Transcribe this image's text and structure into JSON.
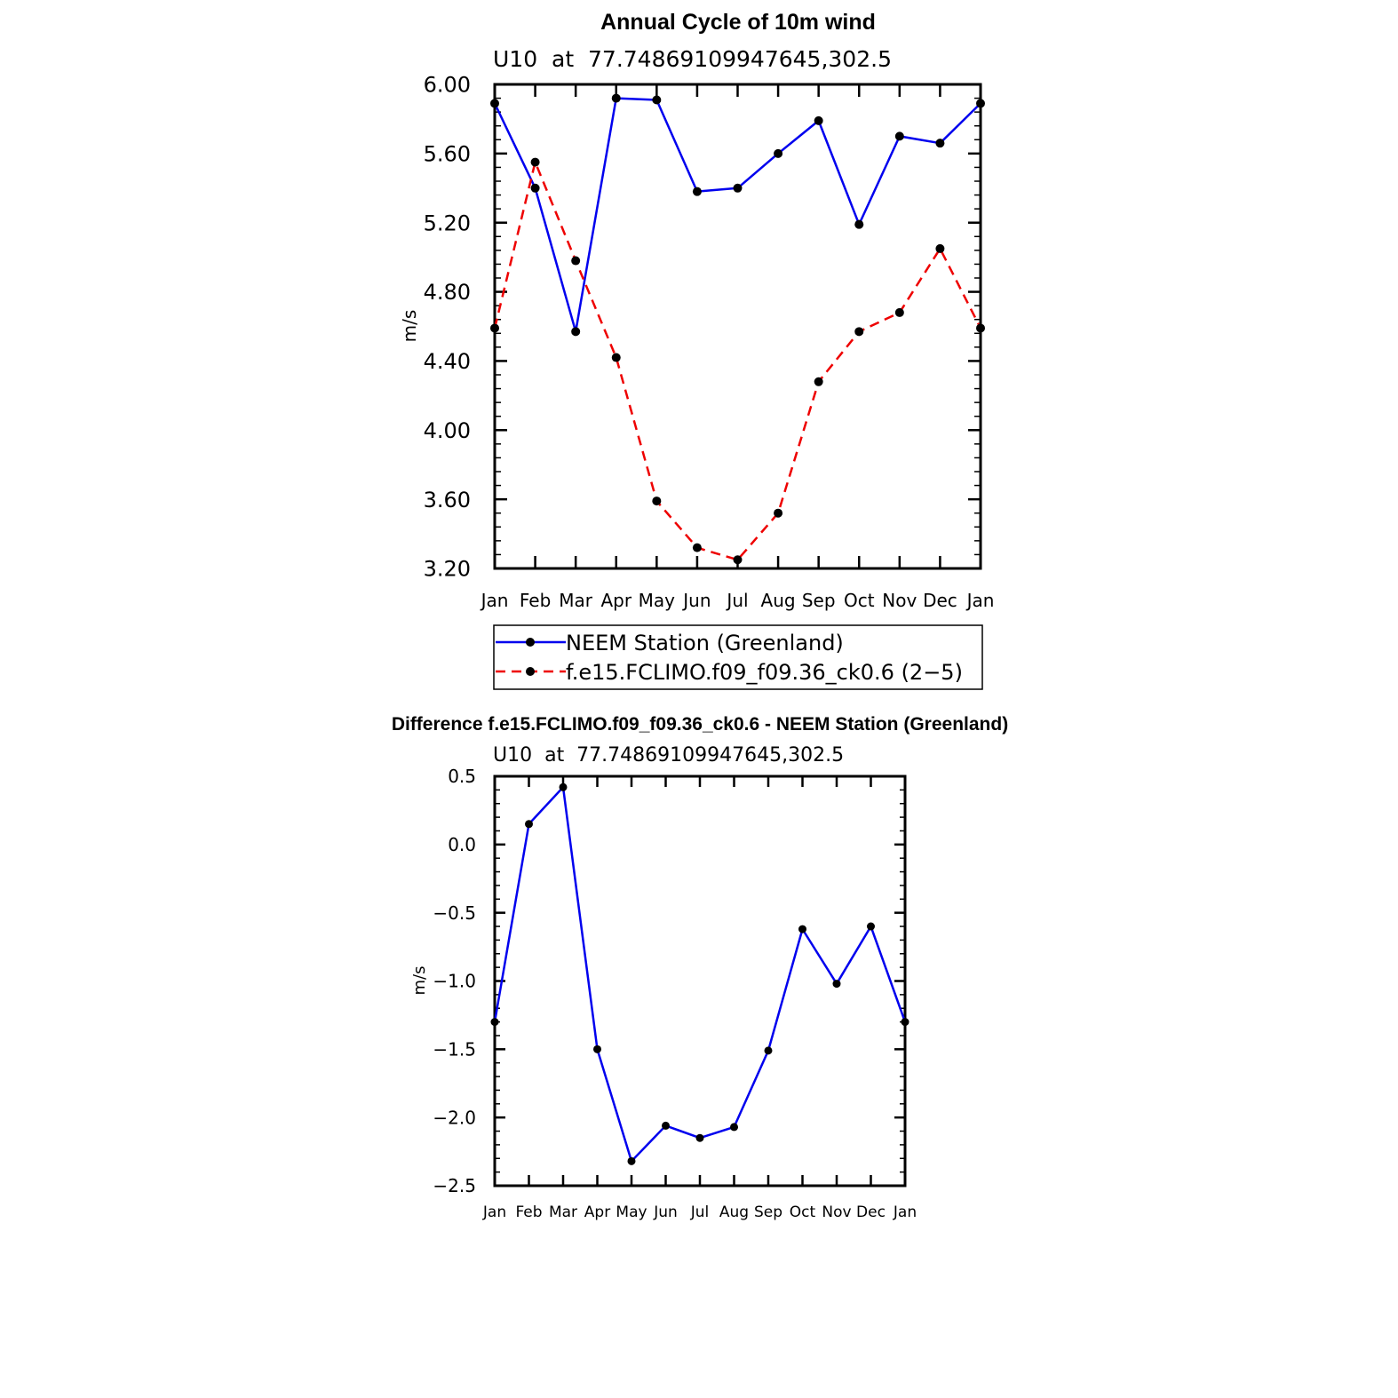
{
  "chart_data": [
    {
      "type": "line",
      "title": "Annual Cycle of 10m wind",
      "subtitle": "U10  at  77.74869109947645,302.5",
      "ylabel": "m/s",
      "xlabel": "",
      "categories": [
        "Jan",
        "Feb",
        "Mar",
        "Apr",
        "May",
        "Jun",
        "Jul",
        "Aug",
        "Sep",
        "Oct",
        "Nov",
        "Dec",
        "Jan"
      ],
      "ylim": [
        3.2,
        6.0
      ],
      "yticks": [
        "3.20",
        "3.60",
        "4.00",
        "4.40",
        "4.80",
        "5.20",
        "5.60",
        "6.00"
      ],
      "grid": false,
      "legend_position": "bottom",
      "series": [
        {
          "name": "NEEM Station (Greenland)",
          "color": "#0000ee",
          "dash": "solid",
          "values": [
            5.89,
            5.4,
            4.57,
            5.92,
            5.91,
            5.38,
            5.4,
            5.6,
            5.79,
            5.19,
            5.7,
            5.66,
            5.89
          ]
        },
        {
          "name": "f.e15.FCLIMO.f09_f09.36_ck0.6 (2−5)",
          "color": "#ee0000",
          "dash": "dashed",
          "values": [
            4.59,
            5.55,
            4.98,
            4.42,
            3.59,
            3.32,
            3.25,
            3.52,
            4.28,
            4.57,
            4.68,
            5.05,
            4.59
          ]
        }
      ]
    },
    {
      "type": "line",
      "title": "Difference f.e15.FCLIMO.f09_f09.36_ck0.6 - NEEM Station (Greenland)",
      "subtitle": "U10  at  77.74869109947645,302.5",
      "ylabel": "m/s",
      "xlabel": "",
      "categories": [
        "Jan",
        "Feb",
        "Mar",
        "Apr",
        "May",
        "Jun",
        "Jul",
        "Aug",
        "Sep",
        "Oct",
        "Nov",
        "Dec",
        "Jan"
      ],
      "ylim": [
        -2.5,
        0.5
      ],
      "yticks": [
        "−2.5",
        "−2.0",
        "−1.5",
        "−1.0",
        "−0.5",
        "0.0",
        "0.5"
      ],
      "grid": false,
      "series": [
        {
          "color": "#0000ee",
          "dash": "solid",
          "values": [
            -1.3,
            0.15,
            0.42,
            -1.5,
            -2.32,
            -2.06,
            -2.15,
            -2.07,
            -1.51,
            -0.62,
            -1.02,
            -0.6,
            -1.3
          ]
        }
      ]
    }
  ]
}
